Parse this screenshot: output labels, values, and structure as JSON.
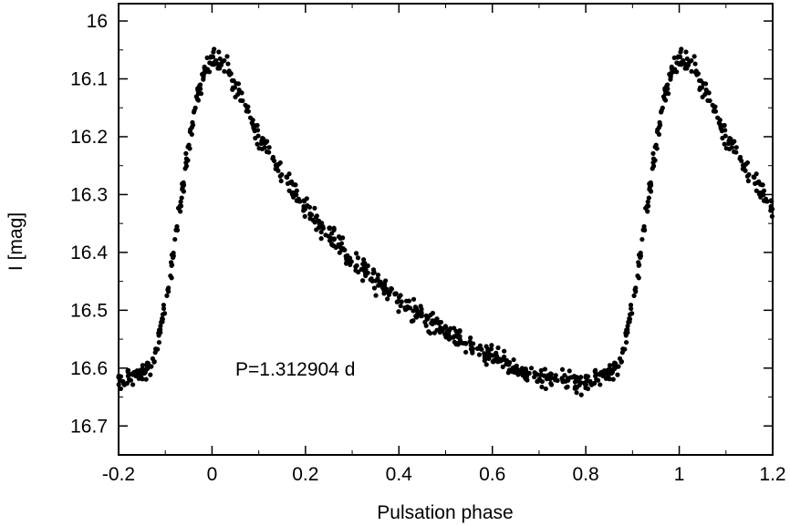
{
  "chart_data": {
    "type": "scatter",
    "title": "",
    "xlabel": "Pulsation phase",
    "ylabel": "I [mag]",
    "xlim": [
      -0.2,
      1.2
    ],
    "ylim": [
      16.75,
      15.97
    ],
    "y_inverted": true,
    "x_ticks": [
      "-0.2",
      "0",
      "0.2",
      "0.4",
      "0.6",
      "0.8",
      "1",
      "1.2"
    ],
    "y_ticks": [
      "16",
      "16.1",
      "16.2",
      "16.3",
      "16.4",
      "16.5",
      "16.6",
      "16.7"
    ],
    "annotation": "P=1.312904 d",
    "grid": false,
    "legend": "none",
    "marker_color": "#000000",
    "light_curve_template": [
      [
        0.0,
        16.07
      ],
      [
        0.01,
        16.065
      ],
      [
        0.03,
        16.075
      ],
      [
        0.05,
        16.12
      ],
      [
        0.08,
        16.16
      ],
      [
        0.1,
        16.2
      ],
      [
        0.15,
        16.26
      ],
      [
        0.2,
        16.32
      ],
      [
        0.25,
        16.37
      ],
      [
        0.3,
        16.41
      ],
      [
        0.35,
        16.45
      ],
      [
        0.4,
        16.48
      ],
      [
        0.45,
        16.51
      ],
      [
        0.5,
        16.535
      ],
      [
        0.55,
        16.56
      ],
      [
        0.6,
        16.58
      ],
      [
        0.65,
        16.6
      ],
      [
        0.7,
        16.615
      ],
      [
        0.75,
        16.625
      ],
      [
        0.8,
        16.625
      ],
      [
        0.84,
        16.615
      ],
      [
        0.87,
        16.6
      ],
      [
        0.88,
        16.58
      ],
      [
        0.89,
        16.53
      ],
      [
        0.91,
        16.45
      ],
      [
        0.93,
        16.33
      ],
      [
        0.95,
        16.22
      ],
      [
        0.97,
        16.12
      ],
      [
        0.99,
        16.075
      ],
      [
        1.0,
        16.07
      ]
    ],
    "phase_points": 640,
    "scatter_mag": 0.018,
    "repeat_ranges": [
      [
        -0.2,
        0.0
      ],
      [
        1.0,
        1.2
      ]
    ]
  }
}
